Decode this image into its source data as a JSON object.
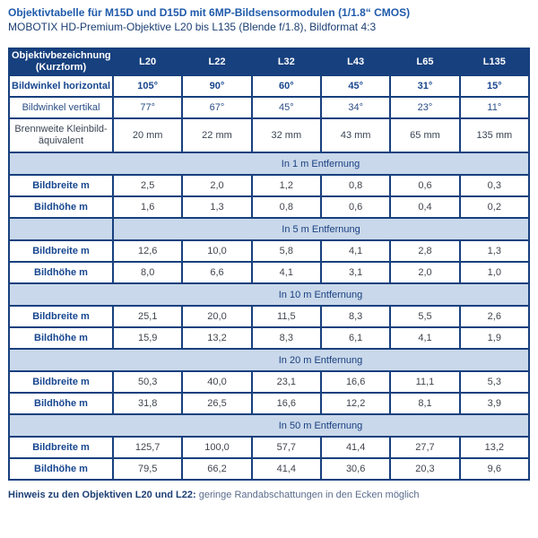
{
  "title": {
    "line1": "Objektivtabelle für M15D und D15D mit 6MP-Bildsensormodulen (1/1.8“ CMOS)",
    "line2": "MOBOTIX HD-Premium-Objektive L20 bis L135 (Blende f/1.8), Bildformat 4:3"
  },
  "colors": {
    "header_navy": "#17407e",
    "band_blue": "#c9d8ea",
    "label_blue": "#17468f",
    "value_dark": "#41454d",
    "title_blue": "#1f5aab"
  },
  "table": {
    "corner": "Objektivbezeichnung\n(Kurzform)",
    "columns": [
      "L20",
      "L22",
      "L32",
      "L43",
      "L65",
      "L135"
    ],
    "spec_rows": [
      {
        "label": "Bildwinkel horizontal",
        "values": [
          "105°",
          "90°",
          "60°",
          "45°",
          "31°",
          "15°"
        ]
      },
      {
        "label": "Bildwinkel vertikal",
        "values": [
          "77°",
          "67°",
          "45°",
          "34°",
          "23°",
          "11°"
        ]
      },
      {
        "label": "Brennweite Kleinbild-\näquivalent",
        "values": [
          "20 mm",
          "22 mm",
          "32 mm",
          "43 mm",
          "65 mm",
          "135 mm"
        ]
      }
    ],
    "sections": [
      {
        "heading": "In 1 m Entfernung",
        "rows": [
          {
            "label": "Bildbreite m",
            "values": [
              "2,5",
              "2,0",
              "1,2",
              "0,8",
              "0,6",
              "0,3"
            ]
          },
          {
            "label": "Bildhöhe m",
            "values": [
              "1,6",
              "1,3",
              "0,8",
              "0,6",
              "0,4",
              "0,2"
            ]
          }
        ]
      },
      {
        "heading": "In 5 m Entfernung",
        "rows": [
          {
            "label": "Bildbreite m",
            "values": [
              "12,6",
              "10,0",
              "5,8",
              "4,1",
              "2,8",
              "1,3"
            ]
          },
          {
            "label": "Bildhöhe m",
            "values": [
              "8,0",
              "6,6",
              "4,1",
              "3,1",
              "2,0",
              "1,0"
            ]
          }
        ]
      },
      {
        "heading": "In 10 m Entfernung",
        "rows": [
          {
            "label": "Bildbreite m",
            "values": [
              "25,1",
              "20,0",
              "11,5",
              "8,3",
              "5,5",
              "2,6"
            ]
          },
          {
            "label": "Bildhöhe m",
            "values": [
              "15,9",
              "13,2",
              "8,3",
              "6,1",
              "4,1",
              "1,9"
            ]
          }
        ]
      },
      {
        "heading": "In 20 m Entfernung",
        "rows": [
          {
            "label": "Bildbreite m",
            "values": [
              "50,3",
              "40,0",
              "23,1",
              "16,6",
              "11,1",
              "5,3"
            ]
          },
          {
            "label": "Bildhöhe m",
            "values": [
              "31,8",
              "26,5",
              "16,6",
              "12,2",
              "8,1",
              "3,9"
            ]
          }
        ]
      },
      {
        "heading": "In 50 m Entfernung",
        "rows": [
          {
            "label": "Bildbreite m",
            "values": [
              "125,7",
              "100,0",
              "57,7",
              "41,4",
              "27,7",
              "13,2"
            ]
          },
          {
            "label": "Bildhöhe m",
            "values": [
              "79,5",
              "66,2",
              "41,4",
              "30,6",
              "20,3",
              "9,6"
            ]
          }
        ]
      }
    ]
  },
  "footnote": {
    "bold": "Hinweis zu den Objektiven L20 und L22:",
    "regular": "geringe Randabschattungen in den Ecken möglich"
  }
}
